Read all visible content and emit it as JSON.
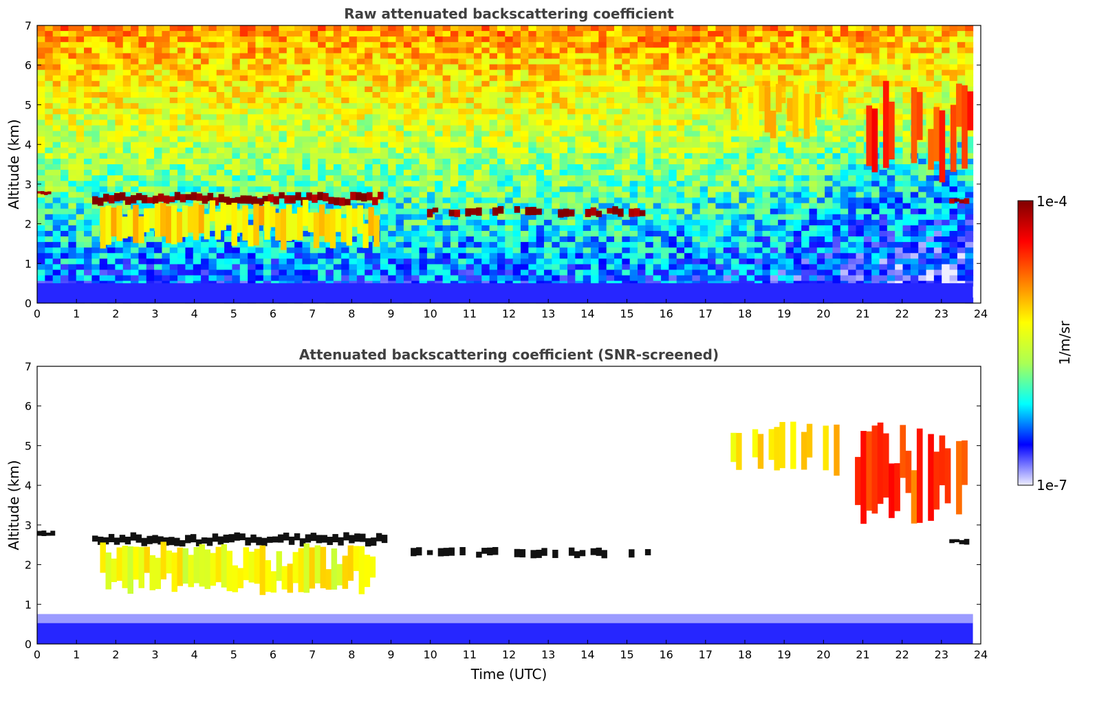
{
  "chart_data": [
    {
      "type": "heatmap",
      "title": "Raw attenuated backscattering coefficient",
      "xlabel": "",
      "ylabel": "Altitude (km)",
      "xlim": [
        0,
        24
      ],
      "ylim": [
        0,
        7
      ],
      "x_ticks": [
        "0",
        "1",
        "2",
        "3",
        "4",
        "5",
        "6",
        "7",
        "8",
        "9",
        "10",
        "11",
        "12",
        "13",
        "14",
        "15",
        "16",
        "17",
        "18",
        "19",
        "20",
        "21",
        "22",
        "23",
        "24"
      ],
      "y_ticks": [
        "0",
        "1",
        "2",
        "3",
        "4",
        "5",
        "6",
        "7"
      ],
      "data_end_time": 23.8,
      "features": [
        {
          "name": "boundary-layer",
          "time": [
            0,
            23.8
          ],
          "alt": [
            0,
            0.5
          ],
          "level": 0.12
        },
        {
          "name": "low-cloud-a",
          "time": [
            0,
            0.35
          ],
          "alt": [
            2.72,
            2.86
          ],
          "level": 1.0
        },
        {
          "name": "low-cloud-b",
          "time": [
            1.4,
            8.8
          ],
          "alt": [
            2.45,
            2.82
          ],
          "level": 1.0
        },
        {
          "name": "low-cloud-c",
          "time": [
            9.5,
            15.6
          ],
          "alt": [
            2.15,
            2.45
          ],
          "level": 1.0
        },
        {
          "name": "low-cloud-d",
          "time": [
            23.2,
            23.7
          ],
          "alt": [
            2.5,
            2.65
          ],
          "level": 1.0
        },
        {
          "name": "precip-fall",
          "time": [
            1.6,
            8.7
          ],
          "alt": [
            1.4,
            2.55
          ],
          "level": 0.6
        },
        {
          "name": "high-cloud-a",
          "time": [
            17.5,
            20.5
          ],
          "alt": [
            4.2,
            5.6
          ],
          "level": 0.62
        },
        {
          "name": "high-cloud-b",
          "time": [
            20.8,
            23.8
          ],
          "alt": [
            3.1,
            5.5
          ],
          "level": 0.8
        }
      ]
    },
    {
      "type": "heatmap",
      "title": "Attenuated backscattering coefficient (SNR-screened)",
      "xlabel": "Time (UTC)",
      "ylabel": "Altitude (km)",
      "xlim": [
        0,
        24
      ],
      "ylim": [
        0,
        7
      ],
      "x_ticks": [
        "0",
        "1",
        "2",
        "3",
        "4",
        "5",
        "6",
        "7",
        "8",
        "9",
        "10",
        "11",
        "12",
        "13",
        "14",
        "15",
        "16",
        "17",
        "18",
        "19",
        "20",
        "21",
        "22",
        "23",
        "24"
      ],
      "y_ticks": [
        "0",
        "1",
        "2",
        "3",
        "4",
        "5",
        "6",
        "7"
      ],
      "data_end_time": 23.8,
      "features": [
        {
          "name": "boundary-layer",
          "time": [
            0,
            23.8
          ],
          "alt": [
            0,
            0.75
          ],
          "level": 0.12
        },
        {
          "name": "low-cloud-a",
          "time": [
            0,
            0.45
          ],
          "alt": [
            2.72,
            2.86
          ],
          "level": 1.0
        },
        {
          "name": "low-cloud-b",
          "time": [
            1.4,
            8.9
          ],
          "alt": [
            2.45,
            2.82
          ],
          "level": 1.0
        },
        {
          "name": "low-cloud-c",
          "time": [
            9.5,
            15.6
          ],
          "alt": [
            2.15,
            2.45
          ],
          "level": 1.0
        },
        {
          "name": "low-cloud-d",
          "time": [
            23.2,
            23.7
          ],
          "alt": [
            2.5,
            2.65
          ],
          "level": 1.0
        },
        {
          "name": "precip-fall",
          "time": [
            1.6,
            8.6
          ],
          "alt": [
            1.3,
            2.55
          ],
          "level": 0.55
        },
        {
          "name": "high-cloud-a",
          "time": [
            17.5,
            20.4
          ],
          "alt": [
            4.3,
            5.6
          ],
          "level": 0.6
        },
        {
          "name": "high-cloud-b",
          "time": [
            20.8,
            23.8
          ],
          "alt": [
            3.1,
            5.5
          ],
          "level": 0.78
        }
      ]
    }
  ],
  "colorbar": {
    "label": "1/m/sr",
    "max_label": "1e-4",
    "min_label": "1e-7",
    "colors": [
      "#eeeeff",
      "#0000ff",
      "#00ffff",
      "#aaff55",
      "#ffff00",
      "#ff8000",
      "#ff0000",
      "#800000"
    ]
  }
}
